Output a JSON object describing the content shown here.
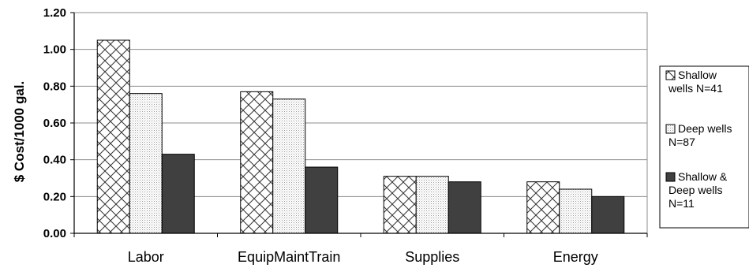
{
  "chart_data": {
    "type": "bar",
    "ylabel": "$ Cost/1000 gal.",
    "xlabel": "",
    "ylim": [
      0,
      1.2
    ],
    "yticks": [
      "0.00",
      "0.20",
      "0.40",
      "0.60",
      "0.80",
      "1.00",
      "1.20"
    ],
    "grid": true,
    "legend_position": "right",
    "categories": [
      "Labor",
      "EquipMaintTrain",
      "Supplies",
      "Energy"
    ],
    "series": [
      {
        "name": "Shallow wells N=41",
        "legend_lines": [
          "Shallow",
          "wells N=41"
        ],
        "pattern": "crosshatch",
        "color": "#ffffff",
        "values": [
          1.05,
          0.77,
          0.31,
          0.28
        ]
      },
      {
        "name": "Deep wells N=87",
        "legend_lines": [
          "Deep wells",
          "N=87"
        ],
        "pattern": "dots",
        "color": "#f2f2f2",
        "values": [
          0.76,
          0.73,
          0.31,
          0.24
        ]
      },
      {
        "name": "Shallow & Deep wells N=11",
        "legend_lines": [
          "Shallow &",
          "Deep wells",
          "N=11"
        ],
        "pattern": "solid",
        "color": "#404040",
        "values": [
          0.43,
          0.36,
          0.28,
          0.2
        ]
      }
    ]
  }
}
